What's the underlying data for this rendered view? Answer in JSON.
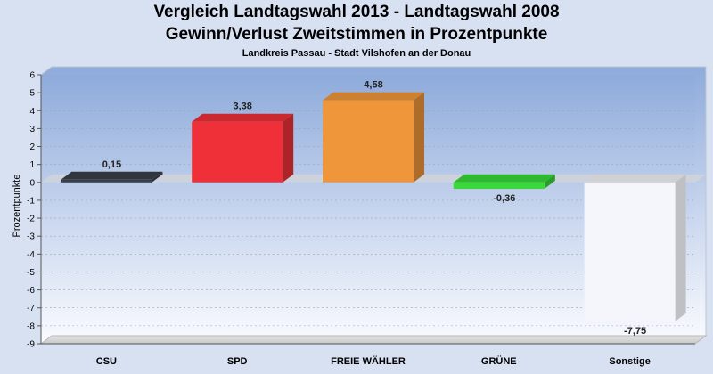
{
  "chart_data": {
    "type": "bar",
    "title": "Vergleich Landtagswahl 2013 - Landtagswahl 2008",
    "subtitle": "Gewinn/Verlust Zweitstimmen in Prozentpunkte",
    "caption": "Landkreis Passau - Stadt Vilshofen an der Donau",
    "ylabel": "Prozentpunkte",
    "xlabel": "",
    "ylim": [
      -9,
      6
    ],
    "yticks": [
      6,
      5,
      4,
      3,
      2,
      1,
      0,
      -1,
      -2,
      -3,
      -4,
      -5,
      -6,
      -7,
      -8,
      -9
    ],
    "categories": [
      "CSU",
      "SPD",
      "FREIE WÄHLER",
      "GRÜNE",
      "Sonstige"
    ],
    "values": [
      0.15,
      3.38,
      4.58,
      -0.36,
      -7.75
    ],
    "value_labels": [
      "0,15",
      "3,38",
      "4,58",
      "-0,36",
      "-7,75"
    ],
    "colors": [
      "#3a3e48",
      "#ef3038",
      "#f0963a",
      "#3ad83a",
      "#f4f6fb"
    ],
    "grid": true,
    "legend": "none"
  }
}
